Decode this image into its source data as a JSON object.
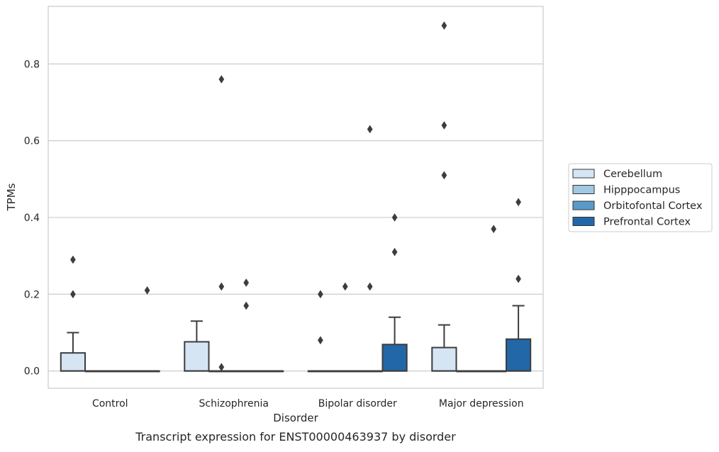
{
  "caption": "Transcript expression for ENST00000463937 by disorder",
  "chart_data": {
    "type": "box",
    "xlabel": "Disorder",
    "ylabel": "TPMs",
    "ylim": [
      -0.045,
      0.95
    ],
    "yticks": [
      0.0,
      0.2,
      0.4,
      0.6,
      0.8
    ],
    "ytick_labels": [
      "0.0",
      "0.2",
      "0.4",
      "0.6",
      "0.8"
    ],
    "grid": "horizontal",
    "legend_position": "right",
    "categories": [
      "Control",
      "Schizophrenia",
      "Bipolar disorder",
      "Major depression"
    ],
    "series": [
      {
        "name": "Cerebellum",
        "color": "#d6e5f4",
        "boxes": [
          {
            "q1": 0.0,
            "median": 0.0,
            "q3": 0.047,
            "whisker_low": 0.0,
            "whisker_high": 0.1,
            "outliers": [
              0.2,
              0.29
            ]
          },
          {
            "q1": 0.0,
            "median": 0.0,
            "q3": 0.076,
            "whisker_low": 0.0,
            "whisker_high": 0.13,
            "outliers": []
          },
          {
            "q1": 0.0,
            "median": 0.0,
            "q3": 0.0,
            "whisker_low": 0.0,
            "whisker_high": 0.0,
            "outliers": [
              0.08,
              0.2
            ]
          },
          {
            "q1": 0.0,
            "median": 0.0,
            "q3": 0.061,
            "whisker_low": 0.0,
            "whisker_high": 0.12,
            "outliers": [
              0.51,
              0.64,
              0.9
            ]
          }
        ]
      },
      {
        "name": "Hipppocampus",
        "color": "#a0c8e0",
        "boxes": [
          {
            "q1": 0.0,
            "median": 0.0,
            "q3": 0.0,
            "whisker_low": 0.0,
            "whisker_high": 0.0,
            "outliers": []
          },
          {
            "q1": 0.0,
            "median": 0.0,
            "q3": 0.0,
            "whisker_low": 0.0,
            "whisker_high": 0.0,
            "outliers": [
              0.01,
              0.22,
              0.76
            ]
          },
          {
            "q1": 0.0,
            "median": 0.0,
            "q3": 0.0,
            "whisker_low": 0.0,
            "whisker_high": 0.0,
            "outliers": [
              0.22
            ]
          },
          {
            "q1": 0.0,
            "median": 0.0,
            "q3": 0.0,
            "whisker_low": 0.0,
            "whisker_high": 0.0,
            "outliers": []
          }
        ]
      },
      {
        "name": "Orbitofontal Cortex",
        "color": "#5a9ac8",
        "boxes": [
          {
            "q1": 0.0,
            "median": 0.0,
            "q3": 0.0,
            "whisker_low": 0.0,
            "whisker_high": 0.0,
            "outliers": []
          },
          {
            "q1": 0.0,
            "median": 0.0,
            "q3": 0.0,
            "whisker_low": 0.0,
            "whisker_high": 0.0,
            "outliers": [
              0.17,
              0.23
            ]
          },
          {
            "q1": 0.0,
            "median": 0.0,
            "q3": 0.0,
            "whisker_low": 0.0,
            "whisker_high": 0.0,
            "outliers": [
              0.22,
              0.63
            ]
          },
          {
            "q1": 0.0,
            "median": 0.0,
            "q3": 0.0,
            "whisker_low": 0.0,
            "whisker_high": 0.0,
            "outliers": [
              0.37
            ]
          }
        ]
      },
      {
        "name": "Prefrontal Cortex",
        "color": "#2267a8",
        "boxes": [
          {
            "q1": 0.0,
            "median": 0.0,
            "q3": 0.0,
            "whisker_low": 0.0,
            "whisker_high": 0.0,
            "outliers": [
              0.21
            ]
          },
          {
            "q1": 0.0,
            "median": 0.0,
            "q3": 0.0,
            "whisker_low": 0.0,
            "whisker_high": 0.0,
            "outliers": []
          },
          {
            "q1": 0.0,
            "median": 0.0,
            "q3": 0.069,
            "whisker_low": 0.0,
            "whisker_high": 0.14,
            "outliers": [
              0.31,
              0.4
            ]
          },
          {
            "q1": 0.0,
            "median": 0.0,
            "q3": 0.083,
            "whisker_low": 0.0,
            "whisker_high": 0.17,
            "outliers": [
              0.24,
              0.44
            ]
          }
        ]
      }
    ]
  }
}
